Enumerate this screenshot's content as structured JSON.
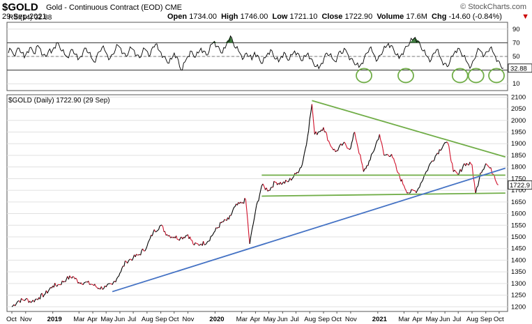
{
  "header": {
    "symbol": "$GOLD",
    "description": "Gold - Continuous Contract (EOD)  CME",
    "date": "29-Sep-2021",
    "open_label": "Open",
    "open": "1734.00",
    "high_label": "High",
    "high": "1746.00",
    "low_label": "Low",
    "low": "1721.10",
    "close_label": "Close",
    "close": "1722.90",
    "volume_label": "Volume",
    "volume": "17.6M",
    "chg_label": "Chg",
    "chg": "-14.60 (-0.84%)",
    "brand": "© StockCharts.com",
    "close_icon": "close-x-icon"
  },
  "chart_data": [
    {
      "type": "line",
      "title": "RSI(14) 32.88",
      "current_value": "32.88",
      "ylim": [
        0,
        100
      ],
      "y_ticks": [
        "90",
        "70",
        "50",
        "30",
        "10"
      ],
      "reference_lines": [
        70,
        50,
        30
      ],
      "oversold_circles_x": [
        "2020-12-01",
        "2021-03-05",
        "2021-07-05",
        "2021-08-10",
        "2021-09-25"
      ],
      "series": [
        {
          "values": [
            55,
            60,
            52,
            58,
            62,
            55,
            48,
            57,
            63,
            59,
            54,
            66,
            61,
            52,
            50,
            58,
            55,
            63,
            70,
            66,
            58,
            53,
            49,
            56,
            60,
            53,
            45,
            50,
            58,
            62,
            55,
            48,
            42,
            50,
            57,
            63,
            59,
            52,
            47,
            53,
            60,
            66,
            62,
            55,
            50,
            57,
            62,
            59,
            52,
            48,
            55,
            61,
            57,
            52,
            64,
            68,
            60,
            56,
            50,
            45,
            40,
            46,
            55,
            50,
            35,
            30,
            42,
            50,
            58,
            53,
            49,
            55,
            62,
            58,
            52,
            57,
            68,
            72,
            65,
            60,
            55,
            62,
            73,
            80,
            70,
            62,
            58,
            52,
            48,
            55,
            50,
            45,
            56,
            52,
            44,
            40,
            48,
            55,
            60,
            52,
            46,
            42,
            50,
            56,
            48,
            45,
            52,
            58,
            55,
            48,
            44,
            50,
            55,
            47,
            40,
            35,
            32,
            40,
            48,
            55,
            52,
            47,
            43,
            50,
            58,
            55,
            60,
            52,
            47,
            42,
            38,
            34,
            40,
            48,
            55,
            62,
            57,
            50,
            45,
            52,
            58,
            63,
            69,
            66,
            60,
            52,
            47,
            54,
            60,
            65,
            70,
            74,
            78,
            73,
            66,
            58,
            52,
            48,
            45,
            55,
            60,
            52,
            44,
            40,
            35,
            42,
            50,
            58,
            62,
            57,
            50,
            44,
            38,
            36,
            45,
            55,
            60,
            56,
            52,
            57,
            62,
            57,
            50,
            44,
            36,
            33
          ]
        }
      ]
    },
    {
      "type": "line",
      "title": "$GOLD (Daily) 1722.90 (29 Sep)",
      "current_value": "1722.9",
      "x_ticks": [
        "Oct",
        "Nov",
        "2019",
        "Mar",
        "Apr",
        "May",
        "Jun",
        "Jul",
        "Aug",
        "Sep",
        "Oct",
        "Nov",
        "2020",
        "Mar",
        "Apr",
        "May",
        "Jun",
        "Jul",
        "Aug",
        "Sep",
        "Oct",
        "Nov",
        "2021",
        "Mar",
        "Apr",
        "May",
        "Jun",
        "Jul",
        "Aug",
        "Sep",
        "Oct"
      ],
      "y_ticks": [
        "2100",
        "2050",
        "2000",
        "1950",
        "1900",
        "1850",
        "1800",
        "1750",
        "1700",
        "1650",
        "1600",
        "1550",
        "1500",
        "1450",
        "1400",
        "1350",
        "1300",
        "1250",
        "1200"
      ],
      "ylim": [
        1180,
        2110
      ],
      "series": [
        {
          "name": "$GOLD",
          "x": [
            "2018-10-01",
            "2018-10-15",
            "2018-11-01",
            "2018-11-15",
            "2018-12-01",
            "2018-12-15",
            "2019-01-01",
            "2019-01-15",
            "2019-02-01",
            "2019-02-15",
            "2019-03-01",
            "2019-03-15",
            "2019-04-01",
            "2019-04-15",
            "2019-05-01",
            "2019-05-15",
            "2019-06-01",
            "2019-06-15",
            "2019-07-01",
            "2019-07-15",
            "2019-08-01",
            "2019-08-15",
            "2019-09-01",
            "2019-09-15",
            "2019-10-01",
            "2019-10-15",
            "2019-11-01",
            "2019-11-15",
            "2019-12-01",
            "2019-12-15",
            "2020-01-01",
            "2020-01-15",
            "2020-02-01",
            "2020-02-15",
            "2020-03-01",
            "2020-03-10",
            "2020-03-19",
            "2020-04-01",
            "2020-04-15",
            "2020-05-01",
            "2020-05-15",
            "2020-06-01",
            "2020-06-15",
            "2020-07-01",
            "2020-07-15",
            "2020-07-27",
            "2020-08-06",
            "2020-08-12",
            "2020-08-20",
            "2020-09-01",
            "2020-09-15",
            "2020-09-28",
            "2020-10-15",
            "2020-11-01",
            "2020-11-10",
            "2020-11-30",
            "2020-12-15",
            "2021-01-05",
            "2021-01-15",
            "2021-02-01",
            "2021-02-15",
            "2021-03-01",
            "2021-03-10",
            "2021-03-31",
            "2021-04-15",
            "2021-05-01",
            "2021-05-15",
            "2021-06-01",
            "2021-06-10",
            "2021-06-20",
            "2021-07-01",
            "2021-07-15",
            "2021-08-01",
            "2021-08-09",
            "2021-08-20",
            "2021-09-01",
            "2021-09-10",
            "2021-09-20",
            "2021-09-29"
          ],
          "values": [
            1200,
            1225,
            1232,
            1222,
            1240,
            1255,
            1290,
            1295,
            1320,
            1330,
            1305,
            1305,
            1295,
            1280,
            1285,
            1295,
            1345,
            1395,
            1410,
            1425,
            1460,
            1520,
            1550,
            1510,
            1500,
            1495,
            1510,
            1465,
            1470,
            1480,
            1525,
            1560,
            1575,
            1630,
            1645,
            1660,
            1470,
            1610,
            1720,
            1700,
            1735,
            1730,
            1740,
            1770,
            1810,
            1930,
            2070,
            1940,
            1950,
            1970,
            1900,
            1865,
            1900,
            1880,
            1950,
            1780,
            1830,
            1940,
            1850,
            1855,
            1775,
            1720,
            1690,
            1700,
            1760,
            1820,
            1860,
            1905,
            1890,
            1780,
            1765,
            1815,
            1810,
            1685,
            1775,
            1815,
            1795,
            1765,
            1722.9
          ]
        }
      ],
      "trendlines": [
        {
          "name": "upper-falling-resistance",
          "color": "#70ad47",
          "from": {
            "x": "2020-08-06",
            "y": 2085
          },
          "to": {
            "x": "2021-10-15",
            "y": 1843
          }
        },
        {
          "name": "horizontal-resistance",
          "color": "#70ad47",
          "from": {
            "x": "2020-04-15",
            "y": 1765
          },
          "to": {
            "x": "2021-10-15",
            "y": 1765
          }
        },
        {
          "name": "horizontal-support",
          "color": "#70ad47",
          "from": {
            "x": "2020-04-15",
            "y": 1675
          },
          "to": {
            "x": "2021-10-15",
            "y": 1688
          }
        },
        {
          "name": "rising-support",
          "color": "#4472c4",
          "from": {
            "x": "2019-05-15",
            "y": 1265
          },
          "to": {
            "x": "2021-10-15",
            "y": 1795
          }
        }
      ]
    }
  ],
  "colors": {
    "price_up": "#000000",
    "price_down": "#d0102a",
    "rsi_line": "#000000",
    "rsi_fill": "#3f7d3f",
    "green_trend": "#70ad47",
    "blue_trend": "#4472c4",
    "grid": "#e0e0e0"
  }
}
